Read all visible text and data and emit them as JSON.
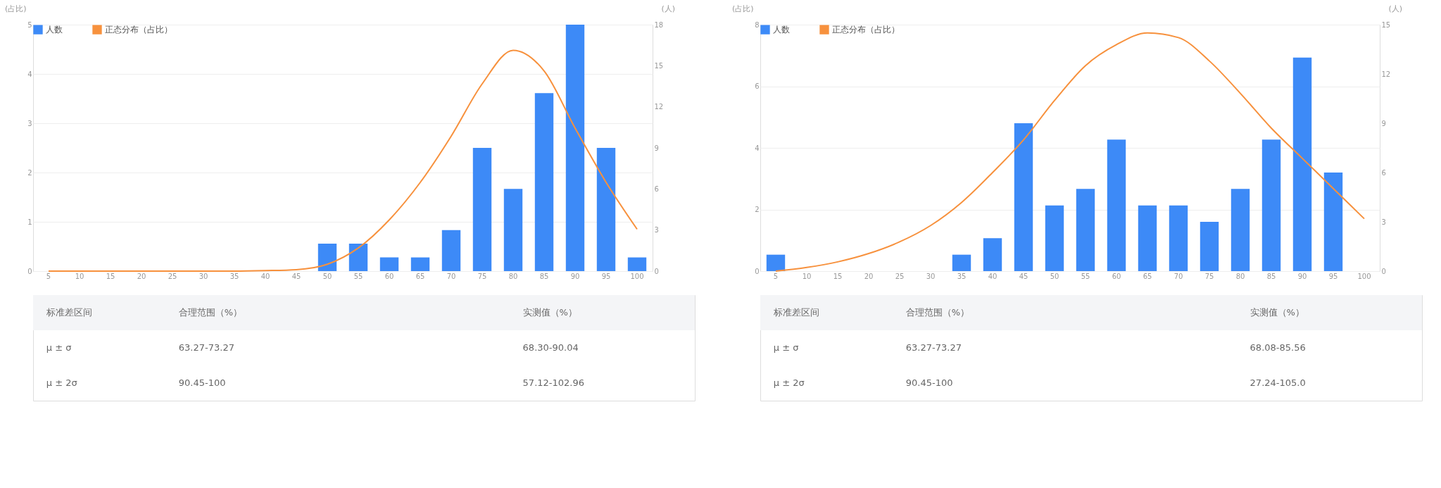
{
  "chart_data": [
    {
      "type": "bar",
      "categories": [
        "5",
        "10",
        "15",
        "20",
        "25",
        "30",
        "35",
        "40",
        "45",
        "50",
        "55",
        "60",
        "65",
        "70",
        "75",
        "80",
        "85",
        "90",
        "95",
        "100"
      ],
      "series": [
        {
          "name": "人数",
          "axis": "y2",
          "color": "#3d8af7",
          "values": [
            0,
            0,
            0,
            0,
            0,
            0,
            0,
            0,
            0,
            2,
            2,
            1,
            1,
            3,
            9,
            6,
            13,
            18,
            9,
            1
          ]
        },
        {
          "name": "正态分布（占比）",
          "type": "line",
          "color": "#f7913d",
          "values": [
            0,
            0,
            0,
            0,
            0,
            0,
            0,
            0.01,
            0.03,
            0.14,
            0.47,
            1.04,
            1.8,
            2.74,
            3.8,
            4.48,
            4.06,
            2.9,
            1.8,
            0.85
          ]
        }
      ],
      "ylim": [
        0,
        5
      ],
      "yticks": [
        0,
        1,
        2,
        3,
        4,
        5
      ],
      "y2lim": [
        0,
        18
      ],
      "y2ticks": [
        0,
        3,
        6,
        9,
        12,
        15,
        18
      ],
      "ylabel": "(占比)",
      "y2label": "(人)",
      "legend": "top left",
      "grid": "y",
      "marker": "none",
      "annotations": [
        "标准差区间",
        "合理范围（%）",
        "实测值（%）",
        "μ ± σ",
        "63.27-73.27",
        "68.30-90.04",
        "μ ± 2σ",
        "90.45-100",
        "57.12-102.96"
      ]
    },
    {
      "type": "bar",
      "categories": [
        "5",
        "10",
        "15",
        "20",
        "25",
        "30",
        "35",
        "40",
        "45",
        "50",
        "55",
        "60",
        "65",
        "70",
        "75",
        "80",
        "85",
        "90",
        "95",
        "100"
      ],
      "series": [
        {
          "name": "人数",
          "axis": "y2",
          "color": "#3d8af7",
          "values": [
            1,
            0,
            0,
            0,
            0,
            0,
            1,
            2,
            9,
            4,
            5,
            8,
            4,
            4,
            3,
            5,
            8,
            13,
            6,
            0
          ]
        },
        {
          "name": "正态分布（占比）",
          "type": "line",
          "color": "#f7913d",
          "values": [
            0,
            0.12,
            0.3,
            0.57,
            0.95,
            1.48,
            2.23,
            3.2,
            4.26,
            5.54,
            6.67,
            7.35,
            7.73,
            7.58,
            6.82,
            5.77,
            4.64,
            3.66,
            2.68,
            1.7
          ]
        }
      ],
      "ylim": [
        0,
        8
      ],
      "yticks": [
        0,
        2,
        4,
        6,
        8
      ],
      "y2lim": [
        0,
        15
      ],
      "y2ticks": [
        0,
        3,
        6,
        9,
        12,
        15
      ],
      "ylabel": "(占比)",
      "y2label": "(人)",
      "legend": "top left",
      "grid": "y",
      "marker": "none",
      "annotations": [
        "标准差区间",
        "合理范围（%）",
        "实测值（%）",
        "μ ± σ",
        "63.27-73.27",
        "68.08-85.56",
        "μ ± 2σ",
        "90.45-100",
        "27.24-105.0"
      ]
    }
  ]
}
